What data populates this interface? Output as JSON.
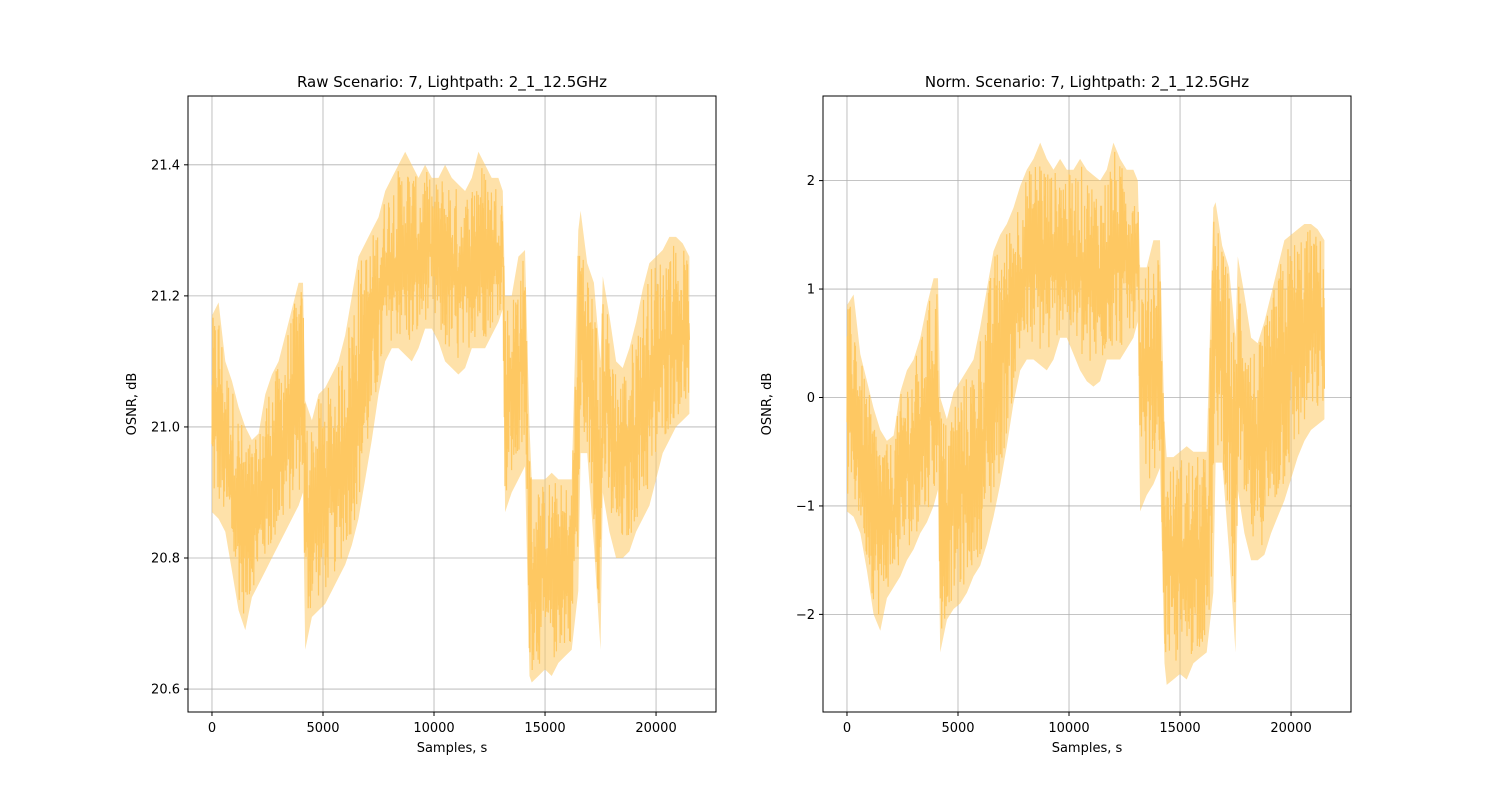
{
  "chart_data": [
    {
      "type": "line",
      "title": "Raw Scenario: 7, Lightpath: 2_1_12.5GHz",
      "xlabel": "Samples, s",
      "ylabel": "OSNR, dB",
      "xlim": [
        -1080,
        22700
      ],
      "ylim": [
        20.565,
        21.505
      ],
      "xticks": [
        0,
        5000,
        10000,
        15000,
        20000
      ],
      "xtick_labels": [
        "0",
        "5000",
        "10000",
        "15000",
        "20000"
      ],
      "yticks": [
        20.6,
        20.8,
        21.0,
        21.2,
        21.4
      ],
      "ytick_labels": [
        "20.6",
        "20.8",
        "21.0",
        "21.2",
        "21.4"
      ],
      "grid": true,
      "legend": "none",
      "color": "#fec862",
      "series": [
        {
          "x": [
            0,
            300,
            600,
            900,
            1200,
            1500,
            1800,
            2100,
            2400,
            2700,
            3000,
            3300,
            3600,
            3900,
            4100,
            4200,
            4500,
            4800,
            5100,
            5400,
            5700,
            6000,
            6300,
            6600,
            6900,
            7200,
            7500,
            7800,
            8100,
            8400,
            8700,
            9000,
            9300,
            9600,
            9900,
            10200,
            10500,
            10800,
            11100,
            11400,
            11700,
            12000,
            12300,
            12600,
            12900,
            13100,
            13200,
            13500,
            13800,
            14100,
            14300,
            14400,
            14700,
            15000,
            15300,
            15600,
            15900,
            16200,
            16500,
            16600,
            16900,
            17200,
            17500,
            17600,
            17900,
            18200,
            18500,
            18800,
            19100,
            19400,
            19700,
            20000,
            20300,
            20600,
            20900,
            21200,
            21500
          ],
          "low": [
            20.87,
            20.86,
            20.84,
            20.78,
            20.72,
            20.69,
            20.74,
            20.76,
            20.78,
            20.8,
            20.82,
            20.84,
            20.86,
            20.88,
            20.9,
            20.66,
            20.71,
            20.72,
            20.73,
            20.75,
            20.77,
            20.79,
            20.82,
            20.86,
            20.92,
            20.98,
            21.05,
            21.1,
            21.12,
            21.12,
            21.11,
            21.1,
            21.12,
            21.15,
            21.15,
            21.13,
            21.1,
            21.09,
            21.08,
            21.09,
            21.12,
            21.12,
            21.12,
            21.14,
            21.16,
            21.18,
            20.87,
            20.9,
            20.92,
            20.94,
            20.62,
            20.61,
            20.62,
            20.63,
            20.62,
            20.64,
            20.65,
            20.66,
            20.75,
            20.96,
            20.96,
            20.82,
            20.66,
            20.9,
            20.84,
            20.8,
            20.8,
            20.81,
            20.84,
            20.86,
            20.88,
            20.92,
            20.96,
            20.98,
            21.0,
            21.01,
            21.02
          ],
          "high": [
            21.17,
            21.19,
            21.1,
            21.07,
            21.03,
            21.0,
            20.98,
            20.99,
            21.05,
            21.08,
            21.1,
            21.14,
            21.18,
            21.22,
            21.22,
            21.04,
            21.01,
            21.05,
            21.06,
            21.08,
            21.1,
            21.14,
            21.2,
            21.26,
            21.28,
            21.3,
            21.32,
            21.36,
            21.38,
            21.4,
            21.42,
            21.4,
            21.38,
            21.4,
            21.38,
            21.38,
            21.4,
            21.38,
            21.37,
            21.36,
            21.38,
            21.42,
            21.4,
            21.38,
            21.38,
            21.36,
            21.2,
            21.2,
            21.26,
            21.27,
            21.0,
            20.92,
            20.92,
            20.92,
            20.93,
            20.92,
            20.92,
            20.92,
            21.3,
            21.33,
            21.25,
            21.22,
            21.1,
            21.23,
            21.17,
            21.1,
            21.09,
            21.12,
            21.16,
            21.21,
            21.25,
            21.26,
            21.27,
            21.29,
            21.29,
            21.28,
            21.26
          ]
        }
      ]
    },
    {
      "type": "line",
      "title": "Norm. Scenario: 7, Lightpath: 2_1_12.5GHz",
      "xlabel": "Samples, s",
      "ylabel": "OSNR, dB",
      "xlim": [
        -1080,
        22700
      ],
      "ylim": [
        -2.9,
        2.78
      ],
      "xticks": [
        0,
        5000,
        10000,
        15000,
        20000
      ],
      "xtick_labels": [
        "0",
        "5000",
        "10000",
        "15000",
        "20000"
      ],
      "yticks": [
        -2,
        -1,
        0,
        1,
        2
      ],
      "ytick_labels": [
        "−2",
        "−1",
        "0",
        "1",
        "2"
      ],
      "grid": true,
      "legend": "none",
      "color": "#fec862",
      "series": [
        {
          "x": [
            0,
            300,
            600,
            900,
            1200,
            1500,
            1800,
            2100,
            2400,
            2700,
            3000,
            3300,
            3600,
            3900,
            4100,
            4200,
            4500,
            4800,
            5100,
            5400,
            5700,
            6000,
            6300,
            6600,
            6900,
            7200,
            7500,
            7800,
            8100,
            8400,
            8700,
            9000,
            9300,
            9600,
            9900,
            10200,
            10500,
            10800,
            11100,
            11400,
            11700,
            12000,
            12300,
            12600,
            12900,
            13100,
            13200,
            13500,
            13800,
            14100,
            14300,
            14400,
            14700,
            15000,
            15300,
            15600,
            15900,
            16200,
            16500,
            16600,
            16900,
            17200,
            17500,
            17600,
            17900,
            18200,
            18500,
            18800,
            19100,
            19400,
            19700,
            20000,
            20300,
            20600,
            20900,
            21200,
            21500
          ],
          "low": [
            -1.05,
            -1.1,
            -1.25,
            -1.6,
            -2.0,
            -2.15,
            -1.85,
            -1.75,
            -1.65,
            -1.5,
            -1.4,
            -1.25,
            -1.15,
            -1.0,
            -0.85,
            -2.35,
            -2.05,
            -1.95,
            -1.9,
            -1.8,
            -1.65,
            -1.55,
            -1.35,
            -1.1,
            -0.8,
            -0.45,
            -0.05,
            0.25,
            0.35,
            0.35,
            0.3,
            0.25,
            0.35,
            0.55,
            0.55,
            0.4,
            0.25,
            0.15,
            0.1,
            0.15,
            0.35,
            0.35,
            0.35,
            0.45,
            0.55,
            0.7,
            -1.05,
            -0.9,
            -0.8,
            -0.65,
            -2.45,
            -2.65,
            -2.6,
            -2.55,
            -2.6,
            -2.45,
            -2.4,
            -2.35,
            -1.8,
            -0.6,
            -0.6,
            -1.4,
            -2.35,
            -0.85,
            -1.25,
            -1.5,
            -1.5,
            -1.45,
            -1.25,
            -1.1,
            -0.95,
            -0.75,
            -0.55,
            -0.4,
            -0.3,
            -0.25,
            -0.2
          ],
          "high": [
            0.85,
            0.95,
            0.4,
            0.15,
            -0.1,
            -0.3,
            -0.4,
            -0.35,
            0.05,
            0.25,
            0.35,
            0.55,
            0.85,
            1.1,
            1.1,
            0.0,
            -0.2,
            0.05,
            0.15,
            0.25,
            0.35,
            0.65,
            1.0,
            1.35,
            1.5,
            1.6,
            1.75,
            1.95,
            2.1,
            2.2,
            2.35,
            2.2,
            2.1,
            2.2,
            2.1,
            2.1,
            2.2,
            2.1,
            2.05,
            2.0,
            2.1,
            2.35,
            2.2,
            2.1,
            2.1,
            2.0,
            1.2,
            1.2,
            1.45,
            1.45,
            -0.25,
            -0.55,
            -0.55,
            -0.5,
            -0.45,
            -0.5,
            -0.5,
            -0.5,
            1.75,
            1.8,
            1.4,
            1.2,
            0.55,
            1.3,
            0.95,
            0.55,
            0.5,
            0.7,
            0.95,
            1.2,
            1.45,
            1.5,
            1.55,
            1.6,
            1.6,
            1.55,
            1.45
          ]
        }
      ]
    }
  ]
}
